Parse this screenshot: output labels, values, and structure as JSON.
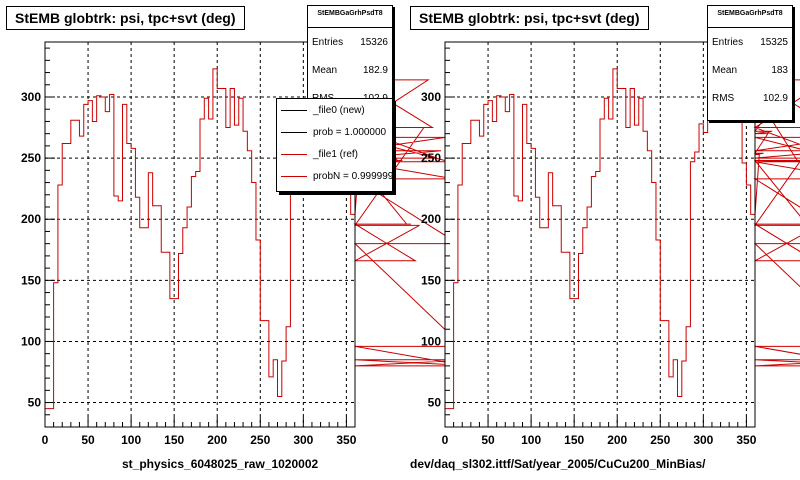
{
  "pads": [
    {
      "title": "StEMB globtrk: psi, tpc+svt (deg)",
      "stats": {
        "header": "StEMBGaGrhPsdT8",
        "rows": [
          {
            "label": "Entries",
            "value": "15326"
          },
          {
            "label": "Mean",
            "value": "182.9"
          },
          {
            "label": "RMS",
            "value": "102.9"
          }
        ]
      },
      "legend": [
        {
          "label": "_file0 (new)",
          "color": "#000000"
        },
        {
          "label": "prob = 1.000000",
          "color": "#000000"
        },
        {
          "label": "_file1 (ref)",
          "color": "#cc0000"
        },
        {
          "label": "probN = 0.999999",
          "color": "#cc0000"
        }
      ],
      "caption": "st_physics_6048025_raw_1020002"
    },
    {
      "title": "StEMB globtrk: psi, tpc+svt (deg)",
      "stats": {
        "header": "StEMBGaGrhPsdT8",
        "rows": [
          {
            "label": "Entries",
            "value": "15325"
          },
          {
            "label": "Mean",
            "value": "183"
          },
          {
            "label": "RMS",
            "value": "102.9"
          }
        ]
      },
      "caption": "dev/daq_sl302.ittf/Sat/year_2005/CuCu200_MinBias/"
    }
  ],
  "chart_data": [
    {
      "type": "histogram",
      "title": "StEMB globtrk: psi, tpc+svt (deg)",
      "xlim": [
        0,
        360
      ],
      "ylim": [
        30,
        345
      ],
      "xticks": [
        0,
        50,
        100,
        150,
        200,
        250,
        300,
        350
      ],
      "yticks": [
        50,
        100,
        150,
        200,
        250,
        300
      ],
      "grid": true,
      "bin_width": 5,
      "series": [
        {
          "name": "_file0 (new)",
          "color": "#000000"
        },
        {
          "name": "_file1 (ref)",
          "color": "#cc0000"
        }
      ],
      "values": [
        45,
        45,
        148,
        228,
        262,
        262,
        281,
        281,
        268,
        294,
        297,
        280,
        301,
        300,
        288,
        302,
        219,
        215,
        294,
        262,
        258,
        218,
        193,
        193,
        238,
        211,
        211,
        173,
        173,
        135,
        135,
        172,
        193,
        210,
        235,
        239,
        282,
        299,
        282,
        323,
        307,
        307,
        275,
        307,
        277,
        299,
        272,
        256,
        230,
        183,
        117,
        117,
        71,
        85,
        55,
        84,
        112,
        247,
        255,
        278,
        271,
        292,
        294,
        300,
        313,
        334,
        334,
        307,
        304,
        246,
        228,
        204,
        204,
        253,
        254,
        270,
        272,
        296,
        291,
        317,
        317,
        303,
        247,
        248,
        196,
        196,
        166,
        195,
        275,
        314,
        275,
        250,
        256,
        267,
        247,
        233,
        180,
        96,
        80,
        85,
        80,
        80
      ]
    },
    {
      "type": "histogram",
      "title": "StEMB globtrk: psi, tpc+svt (deg)",
      "xlim": [
        0,
        360
      ],
      "ylim": [
        30,
        345
      ],
      "xticks": [
        0,
        50,
        100,
        150,
        200,
        250,
        300,
        350
      ],
      "yticks": [
        50,
        100,
        150,
        200,
        250,
        300
      ],
      "grid": true,
      "bin_width": 5,
      "series": [
        {
          "name": "",
          "color": "#cc0000"
        }
      ],
      "values": [
        45,
        45,
        148,
        228,
        262,
        262,
        281,
        281,
        268,
        294,
        297,
        280,
        301,
        300,
        288,
        302,
        219,
        215,
        294,
        262,
        258,
        218,
        193,
        193,
        238,
        211,
        211,
        173,
        173,
        135,
        135,
        172,
        193,
        210,
        235,
        239,
        282,
        299,
        282,
        323,
        307,
        307,
        275,
        307,
        277,
        299,
        272,
        256,
        230,
        183,
        117,
        117,
        71,
        85,
        55,
        84,
        112,
        247,
        255,
        278,
        271,
        292,
        294,
        300,
        313,
        334,
        334,
        307,
        304,
        246,
        228,
        204,
        204,
        253,
        254,
        270,
        272,
        296,
        291,
        317,
        317,
        303,
        247,
        248,
        196,
        196,
        166,
        195,
        275,
        314,
        275,
        250,
        256,
        267,
        247,
        233,
        180,
        96,
        80,
        85,
        80,
        80
      ]
    }
  ]
}
